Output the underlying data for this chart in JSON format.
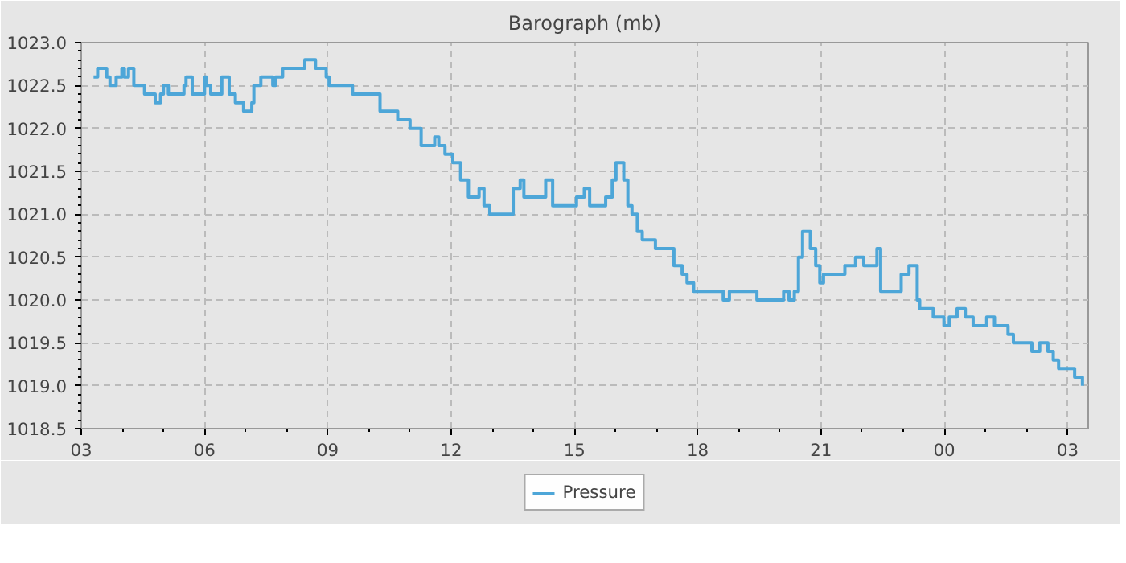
{
  "chart_data": {
    "type": "step",
    "title": "Barograph (mb)",
    "xlim": [
      3,
      27.5
    ],
    "ylim": [
      1018.5,
      1023.0
    ],
    "xticks": [
      {
        "value": 3,
        "label": "03"
      },
      {
        "value": 6,
        "label": "06"
      },
      {
        "value": 9,
        "label": "09"
      },
      {
        "value": 12,
        "label": "12"
      },
      {
        "value": 15,
        "label": "15"
      },
      {
        "value": 18,
        "label": "18"
      },
      {
        "value": 21,
        "label": "21"
      },
      {
        "value": 24,
        "label": "00"
      },
      {
        "value": 27,
        "label": "03"
      }
    ],
    "yticks": [
      {
        "value": 1018.5,
        "label": "1018.5"
      },
      {
        "value": 1019.0,
        "label": "1019.0"
      },
      {
        "value": 1019.5,
        "label": "1019.5"
      },
      {
        "value": 1020.0,
        "label": "1020.0"
      },
      {
        "value": 1020.5,
        "label": "1020.5"
      },
      {
        "value": 1021.0,
        "label": "1021.0"
      },
      {
        "value": 1021.5,
        "label": "1021.5"
      },
      {
        "value": 1022.0,
        "label": "1022.0"
      },
      {
        "value": 1022.5,
        "label": "1022.5"
      },
      {
        "value": 1023.0,
        "label": "1023.0"
      }
    ],
    "grid": true,
    "legend": "bottom",
    "series": [
      {
        "name": "Pressure",
        "color": "#4da6d8",
        "x": [
          3.3,
          3.4,
          3.62,
          3.7,
          3.85,
          3.99,
          4.05,
          4.15,
          4.28,
          4.54,
          4.8,
          4.93,
          5.0,
          5.12,
          5.5,
          5.55,
          5.7,
          6.0,
          6.05,
          6.15,
          6.42,
          6.6,
          6.75,
          6.95,
          7.15,
          7.2,
          7.37,
          7.66,
          7.73,
          7.9,
          8.44,
          8.7,
          8.96,
          9.03,
          9.6,
          10.05,
          10.27,
          10.7,
          11.0,
          11.27,
          11.6,
          11.7,
          11.85,
          12.04,
          12.23,
          12.42,
          12.68,
          12.8,
          12.94,
          13.45,
          13.51,
          13.68,
          13.77,
          14.22,
          14.3,
          14.47,
          15.05,
          15.24,
          15.37,
          15.76,
          15.92,
          16.01,
          16.2,
          16.3,
          16.4,
          16.53,
          16.65,
          16.97,
          17.23,
          17.42,
          17.62,
          17.74,
          17.9,
          18.62,
          18.77,
          19.44,
          20.09,
          20.22,
          20.35,
          20.45,
          20.55,
          20.74,
          20.87,
          20.97,
          21.06,
          21.58,
          21.84,
          22.04,
          22.36,
          22.45,
          22.95,
          23.14,
          23.34,
          23.4,
          23.73,
          23.99,
          24.12,
          24.31,
          24.51,
          24.7,
          25.03,
          25.22,
          25.55,
          25.68,
          26.13,
          26.32,
          26.52,
          26.65,
          26.78,
          27.17,
          27.36
        ],
        "values": [
          1022.6,
          1022.7,
          1022.6,
          1022.5,
          1022.6,
          1022.7,
          1022.6,
          1022.7,
          1022.5,
          1022.4,
          1022.3,
          1022.4,
          1022.5,
          1022.4,
          1022.5,
          1022.6,
          1022.4,
          1022.6,
          1022.5,
          1022.4,
          1022.6,
          1022.4,
          1022.3,
          1022.2,
          1022.3,
          1022.5,
          1022.6,
          1022.5,
          1022.6,
          1022.7,
          1022.8,
          1022.7,
          1022.6,
          1022.5,
          1022.4,
          1022.4,
          1022.2,
          1022.1,
          1022.0,
          1021.8,
          1021.9,
          1021.8,
          1021.7,
          1021.6,
          1021.4,
          1021.2,
          1021.3,
          1021.1,
          1021.0,
          1021.0,
          1021.3,
          1021.4,
          1021.2,
          1021.2,
          1021.4,
          1021.1,
          1021.2,
          1021.3,
          1021.1,
          1021.2,
          1021.4,
          1021.6,
          1021.4,
          1021.1,
          1021.0,
          1020.8,
          1020.7,
          1020.6,
          1020.6,
          1020.4,
          1020.3,
          1020.2,
          1020.1,
          1020.0,
          1020.1,
          1020.0,
          1020.1,
          1020.0,
          1020.1,
          1020.5,
          1020.8,
          1020.6,
          1020.4,
          1020.2,
          1020.3,
          1020.4,
          1020.5,
          1020.4,
          1020.6,
          1020.1,
          1020.3,
          1020.4,
          1020.0,
          1019.9,
          1019.8,
          1019.7,
          1019.8,
          1019.9,
          1019.8,
          1019.7,
          1019.8,
          1019.7,
          1019.6,
          1019.5,
          1019.4,
          1019.5,
          1019.4,
          1019.3,
          1019.2,
          1019.1,
          1019.0
        ]
      }
    ]
  }
}
